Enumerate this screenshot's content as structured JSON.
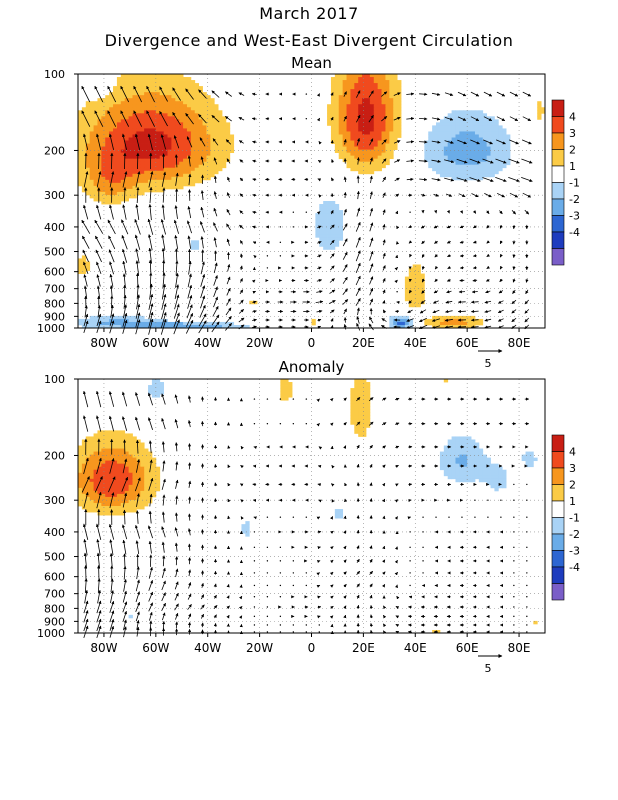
{
  "title": "March 2017",
  "subtitle": "Divergence and West-East Divergent Circulation",
  "colorbar": {
    "labels": [
      "4",
      "3",
      "2",
      "1",
      "-1",
      "-2",
      "-3",
      "-4"
    ],
    "colors": [
      "#c81e14",
      "#f04a1e",
      "#f7961e",
      "#fbcb46",
      "#ffffff",
      "#a9d3f6",
      "#6aace8",
      "#2d66d2",
      "#1e3cbe",
      "#7a5ec8"
    ]
  },
  "colors": {
    "positive": [
      "#fbcb46",
      "#f7961e",
      "#f04a1e",
      "#c81e14"
    ],
    "negative": [
      "#a9d3f6",
      "#6aace8",
      "#2d66d2",
      "#7a5ec8"
    ]
  },
  "chart_data": [
    {
      "type": "heatmap",
      "title": "Mean",
      "x_tick_labels": [
        "80W",
        "60W",
        "40W",
        "20W",
        "0",
        "20E",
        "40E",
        "60E",
        "80E"
      ],
      "x_ticks_deg": [
        -80,
        -60,
        -40,
        -20,
        0,
        20,
        40,
        60,
        80
      ],
      "xlim": [
        -90,
        90
      ],
      "y_tick_labels": [
        "100",
        "200",
        "300",
        "400",
        "500",
        "600",
        "700",
        "800",
        "900",
        "1000"
      ],
      "y_ticks_hPa": [
        100,
        200,
        300,
        400,
        500,
        600,
        700,
        800,
        900,
        1000
      ],
      "ylim": [
        1000,
        100
      ],
      "y_scale": "log",
      "vector_legend": "5",
      "blobs": [
        {
          "lon": -62,
          "p": 190,
          "sx": 26,
          "sy": 80,
          "amp": 4.4
        },
        {
          "lon": -78,
          "p": 270,
          "sx": 10,
          "sy": 60,
          "amp": 1.8
        },
        {
          "lon": -82,
          "p": 110,
          "sx": 5,
          "sy": 12,
          "amp": -1.4
        },
        {
          "lon": 21,
          "p": 150,
          "sx": 12,
          "sy": 80,
          "amp": 4.4
        },
        {
          "lon": 60,
          "p": 200,
          "sx": 18,
          "sy": 65,
          "amp": -2.5
        },
        {
          "lon": 88,
          "p": 140,
          "sx": 4,
          "sy": 40,
          "amp": 1.2
        },
        {
          "lon": 7,
          "p": 400,
          "sx": 8,
          "sy": 130,
          "amp": -1.6
        },
        {
          "lon": -45,
          "p": 470,
          "sx": 4,
          "sy": 40,
          "amp": -1.2
        },
        {
          "lon": -88,
          "p": 570,
          "sx": 4,
          "sy": 90,
          "amp": 1.3
        },
        {
          "lon": -75,
          "p": 950,
          "sx": 20,
          "sy": 60,
          "amp": -2.2
        },
        {
          "lon": -45,
          "p": 980,
          "sx": 22,
          "sy": 30,
          "amp": -2.6
        },
        {
          "lon": -23,
          "p": 790,
          "sx": 3,
          "sy": 30,
          "amp": 1.4
        },
        {
          "lon": 35,
          "p": 950,
          "sx": 5,
          "sy": 60,
          "amp": -3.5
        },
        {
          "lon": 40,
          "p": 700,
          "sx": 5,
          "sy": 180,
          "amp": 1.8
        },
        {
          "lon": 55,
          "p": 950,
          "sx": 12,
          "sy": 60,
          "amp": 2.4
        },
        {
          "lon": 1,
          "p": 950,
          "sx": 3,
          "sy": 40,
          "amp": 1.2
        }
      ],
      "u_wind": [
        {
          "p": 150,
          "values": [
            -2,
            -2,
            -2,
            -1,
            0,
            1,
            2,
            2,
            2
          ]
        },
        {
          "p": 250,
          "values": [
            1,
            1,
            0,
            -1,
            -1,
            0,
            2,
            3,
            3
          ]
        },
        {
          "p": 400,
          "values": [
            -2,
            -1,
            -1,
            -1,
            1,
            1,
            -1,
            -1,
            0
          ]
        },
        {
          "p": 600,
          "values": [
            -1,
            0,
            1,
            0,
            1,
            1,
            0,
            -1,
            0
          ]
        },
        {
          "p": 800,
          "values": [
            0,
            1,
            1,
            1,
            2,
            1,
            -1,
            -2,
            -1
          ]
        },
        {
          "p": 950,
          "values": [
            1,
            1,
            2,
            1,
            1,
            -1,
            -2,
            -2,
            -1
          ]
        }
      ],
      "omega": [
        {
          "p": 250,
          "values": [
            4,
            4,
            2,
            0,
            0,
            2,
            0,
            -1,
            -1
          ]
        },
        {
          "p": 500,
          "values": [
            3,
            4,
            3,
            0,
            0,
            3,
            -1,
            0,
            -1
          ]
        },
        {
          "p": 800,
          "values": [
            3,
            4,
            3,
            0,
            0,
            2,
            -1,
            0,
            -1
          ]
        }
      ]
    },
    {
      "type": "heatmap",
      "title": "Anomaly",
      "x_tick_labels": [
        "80W",
        "60W",
        "40W",
        "20W",
        "0",
        "20E",
        "40E",
        "60E",
        "80E"
      ],
      "x_ticks_deg": [
        -80,
        -60,
        -40,
        -20,
        0,
        20,
        40,
        60,
        80
      ],
      "xlim": [
        -90,
        90
      ],
      "y_tick_labels": [
        "100",
        "200",
        "300",
        "400",
        "500",
        "600",
        "700",
        "800",
        "900",
        "1000"
      ],
      "y_ticks_hPa": [
        100,
        200,
        300,
        400,
        500,
        600,
        700,
        800,
        900,
        1000
      ],
      "ylim": [
        1000,
        100
      ],
      "y_scale": "log",
      "vector_legend": "5",
      "blobs": [
        {
          "lon": -77,
          "p": 250,
          "sx": 16,
          "sy": 80,
          "amp": 3.8
        },
        {
          "lon": -60,
          "p": 110,
          "sx": 6,
          "sy": 20,
          "amp": -1.3
        },
        {
          "lon": -25,
          "p": 390,
          "sx": 4,
          "sy": 60,
          "amp": -1.2
        },
        {
          "lon": -10,
          "p": 110,
          "sx": 4,
          "sy": 25,
          "amp": 1.3
        },
        {
          "lon": 19,
          "p": 130,
          "sx": 5,
          "sy": 50,
          "amp": 1.8
        },
        {
          "lon": 58,
          "p": 210,
          "sx": 10,
          "sy": 50,
          "amp": -2.1
        },
        {
          "lon": 72,
          "p": 250,
          "sx": 6,
          "sy": 40,
          "amp": -1.3
        },
        {
          "lon": 84,
          "p": 205,
          "sx": 4,
          "sy": 25,
          "amp": -1.4
        },
        {
          "lon": 10,
          "p": 340,
          "sx": 4,
          "sy": 40,
          "amp": -1.2
        },
        {
          "lon": 52,
          "p": 100,
          "sx": 3,
          "sy": 10,
          "amp": 1.2
        },
        {
          "lon": -70,
          "p": 850,
          "sx": 2,
          "sy": 30,
          "amp": -1.2
        },
        {
          "lon": 48,
          "p": 1000,
          "sx": 3,
          "sy": 30,
          "amp": 1.4
        },
        {
          "lon": 86,
          "p": 900,
          "sx": 2,
          "sy": 25,
          "amp": 1.3
        }
      ],
      "u_wind": [
        {
          "p": 150,
          "values": [
            -1,
            -1,
            0,
            0,
            0,
            1,
            1,
            1,
            1
          ]
        },
        {
          "p": 250,
          "values": [
            2,
            1,
            0,
            -1,
            -1,
            0,
            1,
            1,
            0
          ]
        },
        {
          "p": 400,
          "values": [
            -1,
            -1,
            0,
            0,
            1,
            0,
            0,
            -1,
            0
          ]
        },
        {
          "p": 600,
          "values": [
            0,
            1,
            0,
            0,
            0,
            1,
            0,
            -1,
            0
          ]
        },
        {
          "p": 800,
          "values": [
            1,
            1,
            1,
            0,
            1,
            0,
            -1,
            -1,
            0
          ]
        },
        {
          "p": 950,
          "values": [
            1,
            0,
            0,
            0,
            0,
            0,
            -1,
            -1,
            0
          ]
        }
      ],
      "omega": [
        {
          "p": 250,
          "values": [
            4,
            3,
            1,
            0,
            0,
            1,
            0,
            0,
            0
          ]
        },
        {
          "p": 500,
          "values": [
            4,
            3,
            1,
            0,
            0,
            1,
            0,
            0,
            0
          ]
        },
        {
          "p": 800,
          "values": [
            3,
            2,
            1,
            0,
            0,
            1,
            0,
            0,
            0
          ]
        }
      ]
    }
  ]
}
